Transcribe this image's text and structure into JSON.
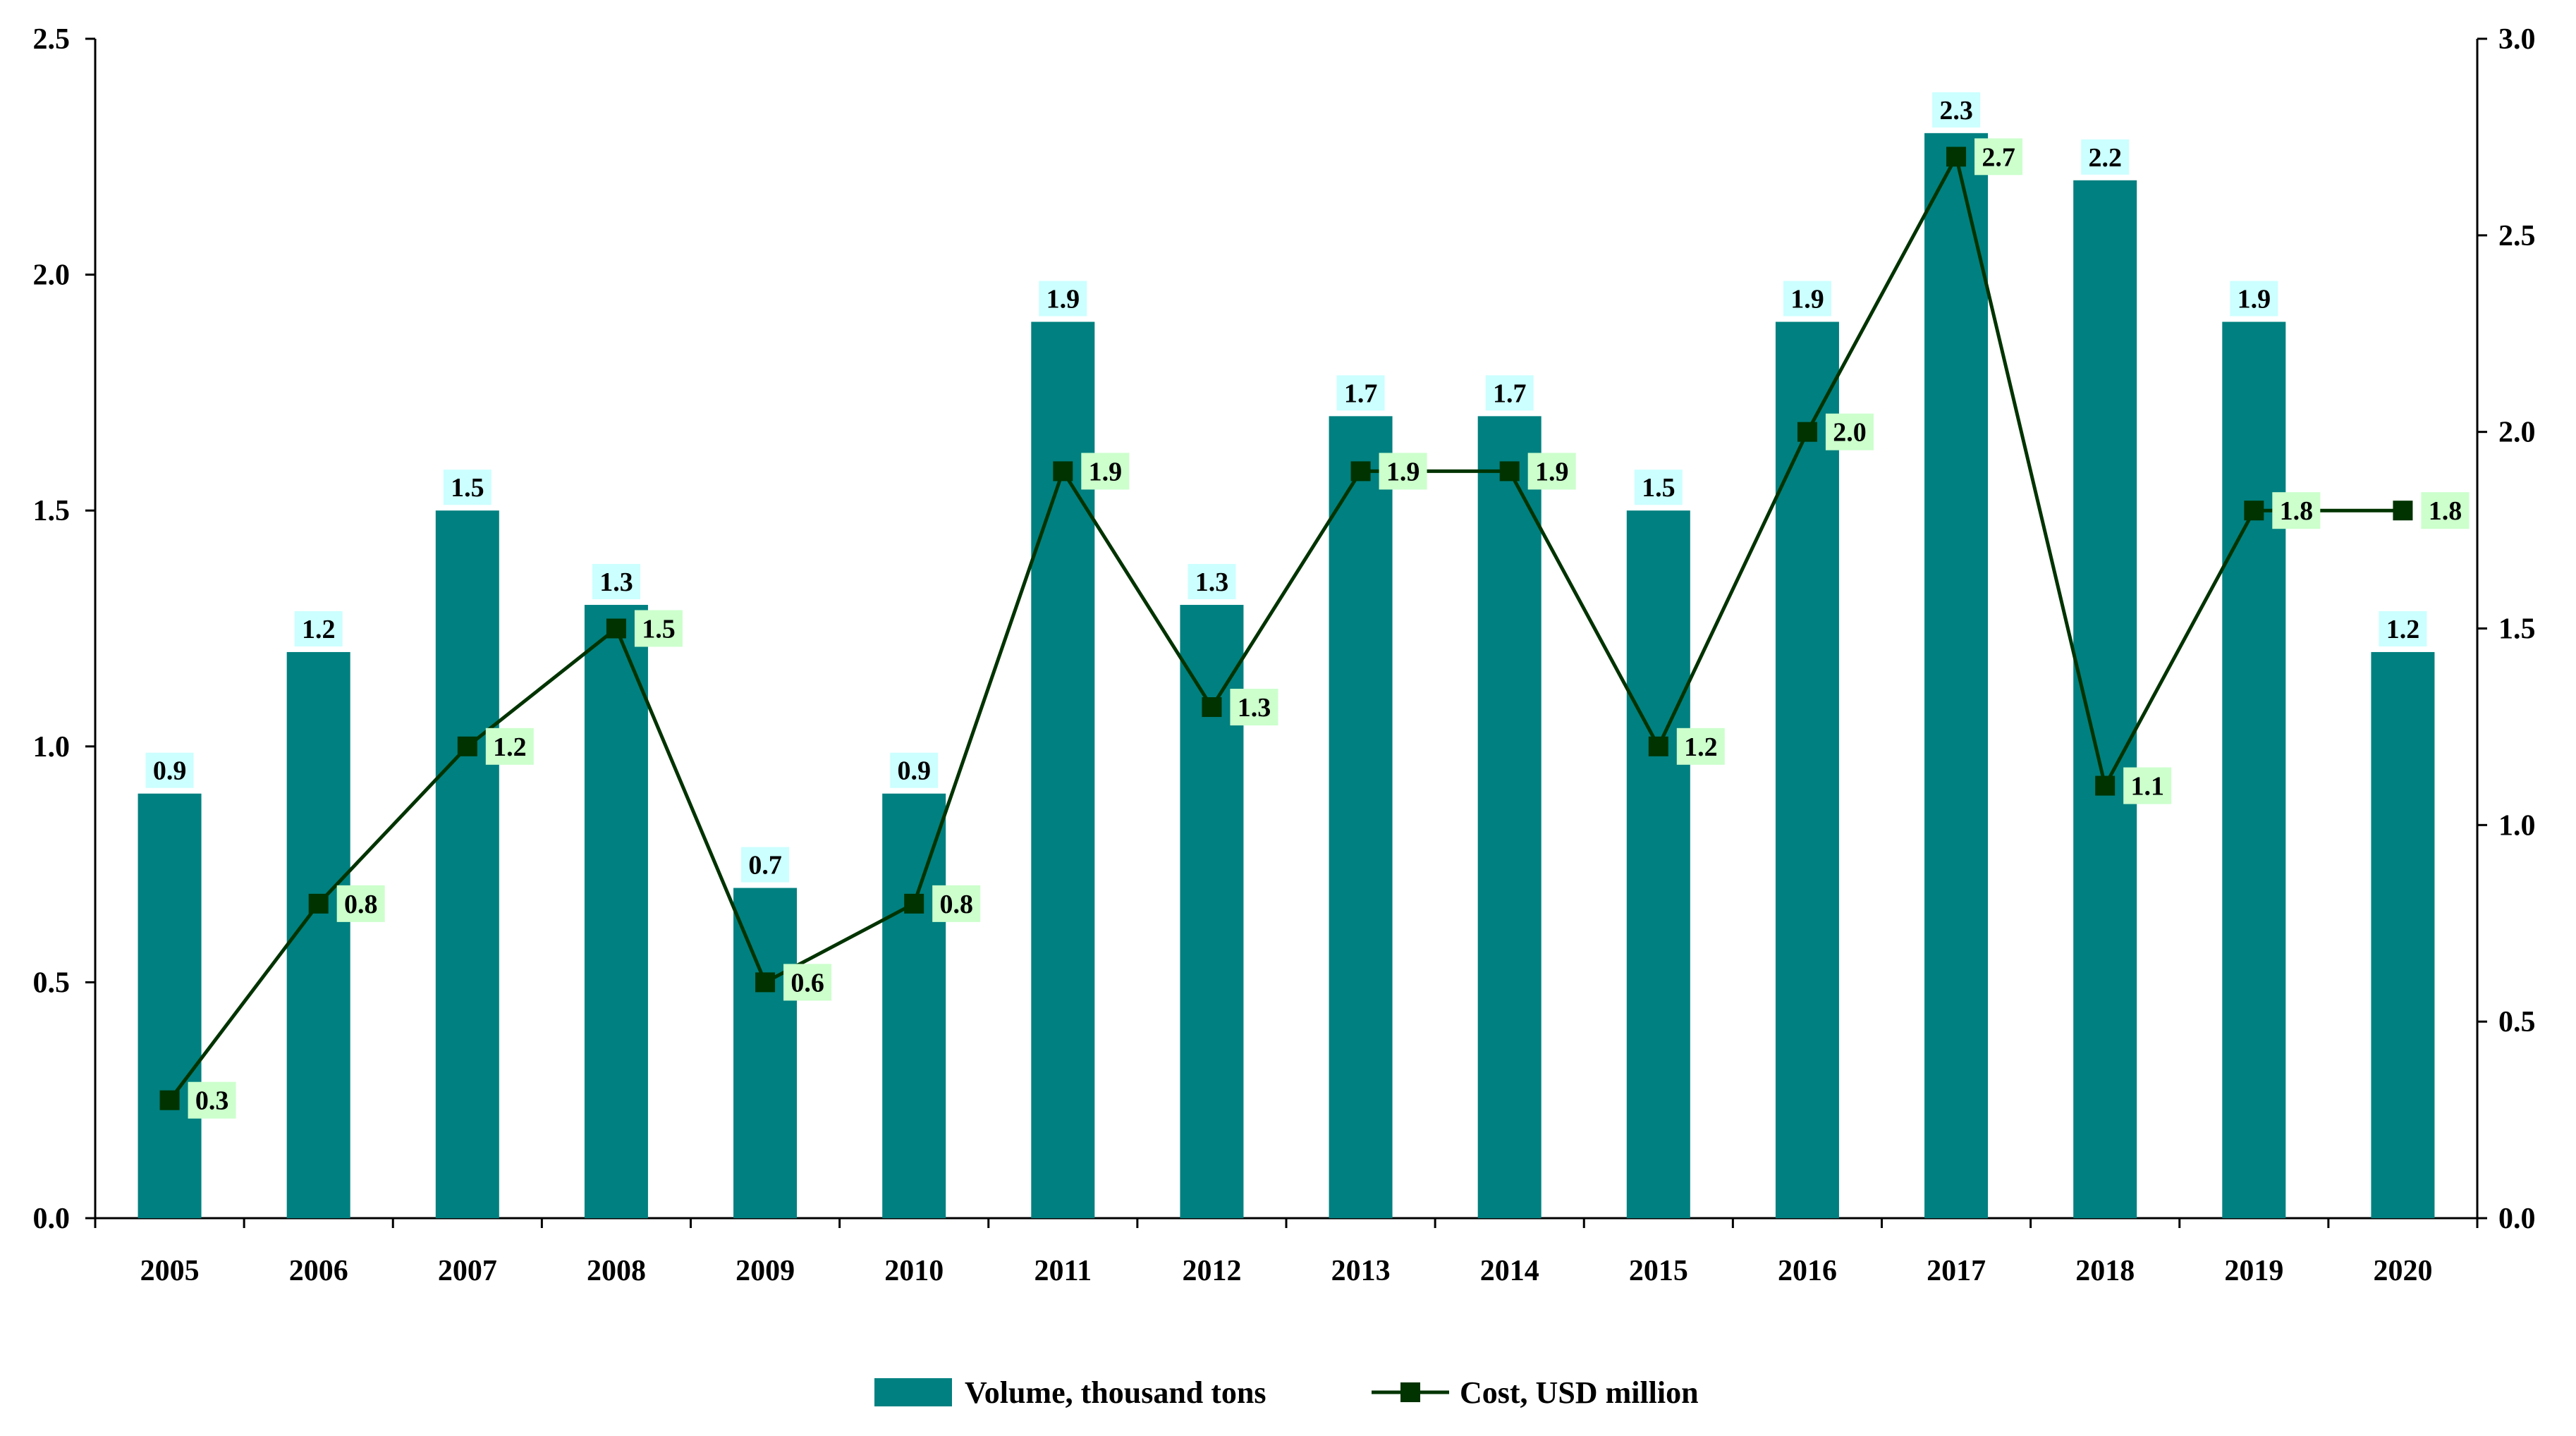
{
  "chart_data": {
    "type": "bar",
    "title": "",
    "categories": [
      "2005",
      "2006",
      "2007",
      "2008",
      "2009",
      "2010",
      "2011",
      "2012",
      "2013",
      "2014",
      "2015",
      "2016",
      "2017",
      "2018",
      "2019",
      "2020"
    ],
    "series": [
      {
        "name": "Volume, thousand tons",
        "type": "bar",
        "axis": "left",
        "color": "#008080",
        "label_bg": "#ccffff",
        "values": [
          0.9,
          1.2,
          1.5,
          1.3,
          0.7,
          0.9,
          1.9,
          1.3,
          1.7,
          1.7,
          1.5,
          1.9,
          2.3,
          2.2,
          1.9,
          1.2
        ]
      },
      {
        "name": "Cost, USD million",
        "type": "line",
        "axis": "right",
        "color": "#003300",
        "label_bg": "#ccffcc",
        "values": [
          0.3,
          0.8,
          1.2,
          1.5,
          0.6,
          0.8,
          1.9,
          1.3,
          1.9,
          1.9,
          1.2,
          2.0,
          2.7,
          1.1,
          1.8,
          1.8
        ]
      }
    ],
    "y_left": {
      "min": 0,
      "max": 2.5,
      "step": 0.5,
      "ticks": [
        "0.0",
        "0.5",
        "1.0",
        "1.5",
        "2.0",
        "2.5"
      ]
    },
    "y_right": {
      "min": 0,
      "max": 3.0,
      "step": 0.5,
      "ticks": [
        "0.0",
        "0.5",
        "1.0",
        "1.5",
        "2.0",
        "2.5",
        "3.0"
      ]
    },
    "xlabel": "",
    "ylabel": "",
    "grid": false,
    "legend": "bottom-center"
  }
}
